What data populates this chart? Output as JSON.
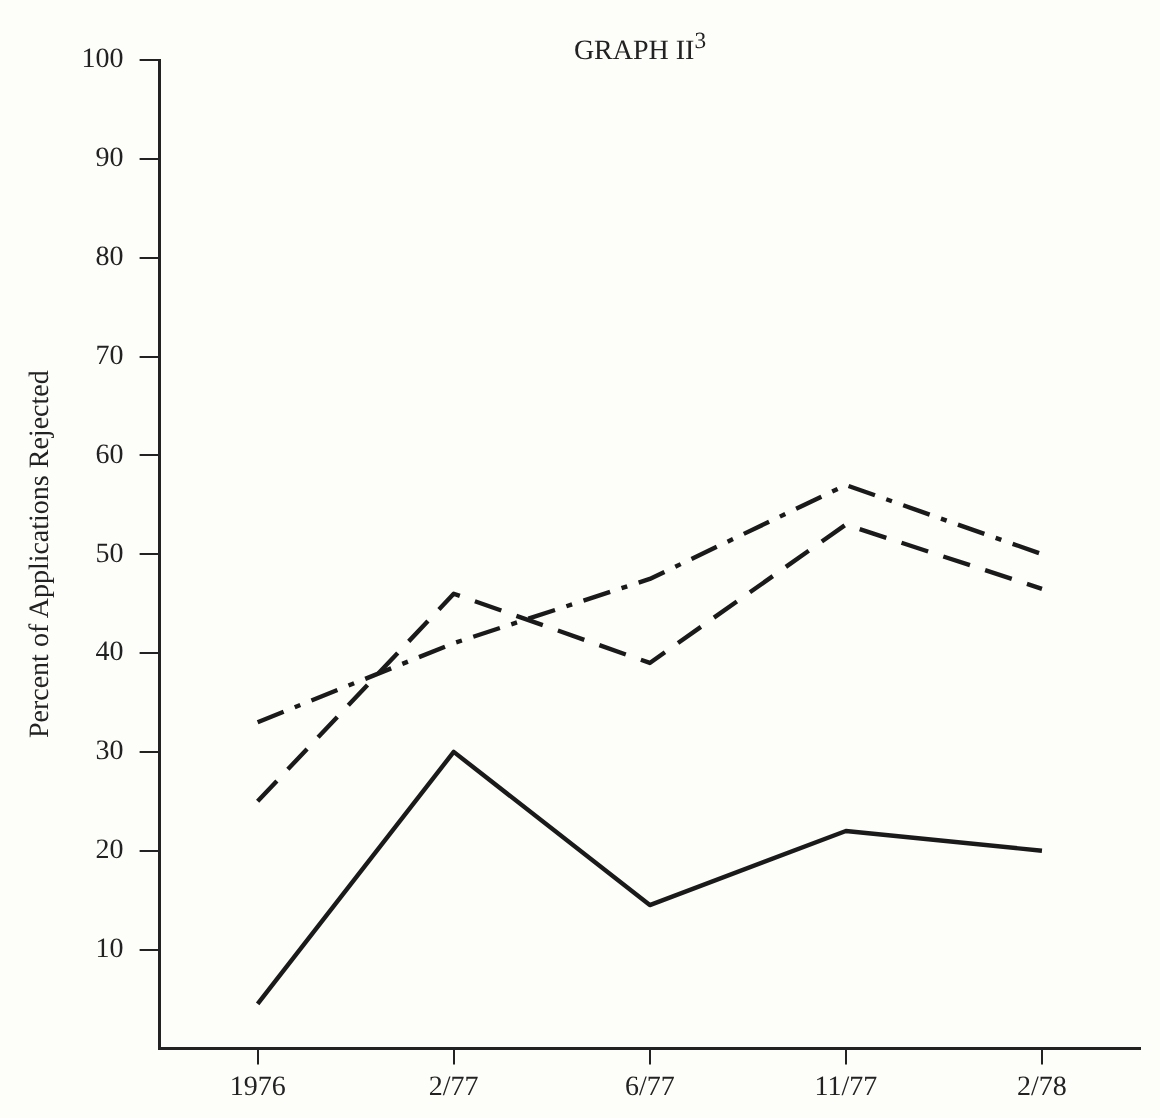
{
  "chart_data": {
    "type": "line",
    "title": "GRAPH II$^{3}$",
    "ylabel": "Percent of Applications Rejected",
    "categories": [
      "1976",
      "2/77",
      "6/77",
      "11/77",
      "2/78"
    ],
    "series": [
      {
        "color": "#1a1a1a",
        "line_style": "solid",
        "values": [
          4.5,
          30,
          14.5,
          22,
          20
        ]
      },
      {
        "color": "#1a1a1a",
        "line_style": "dashed",
        "values": [
          25,
          46,
          39,
          53,
          46.5
        ]
      },
      {
        "color": "#1a1a1a",
        "line_style": "dashdot",
        "values": [
          33,
          41,
          47.5,
          57,
          50
        ]
      }
    ],
    "ylim": [
      0,
      100
    ],
    "yticks": [
      10,
      20,
      30,
      40,
      50,
      60,
      70,
      80,
      90,
      100
    ],
    "grid": false,
    "legend": false,
    "marker": "none"
  }
}
